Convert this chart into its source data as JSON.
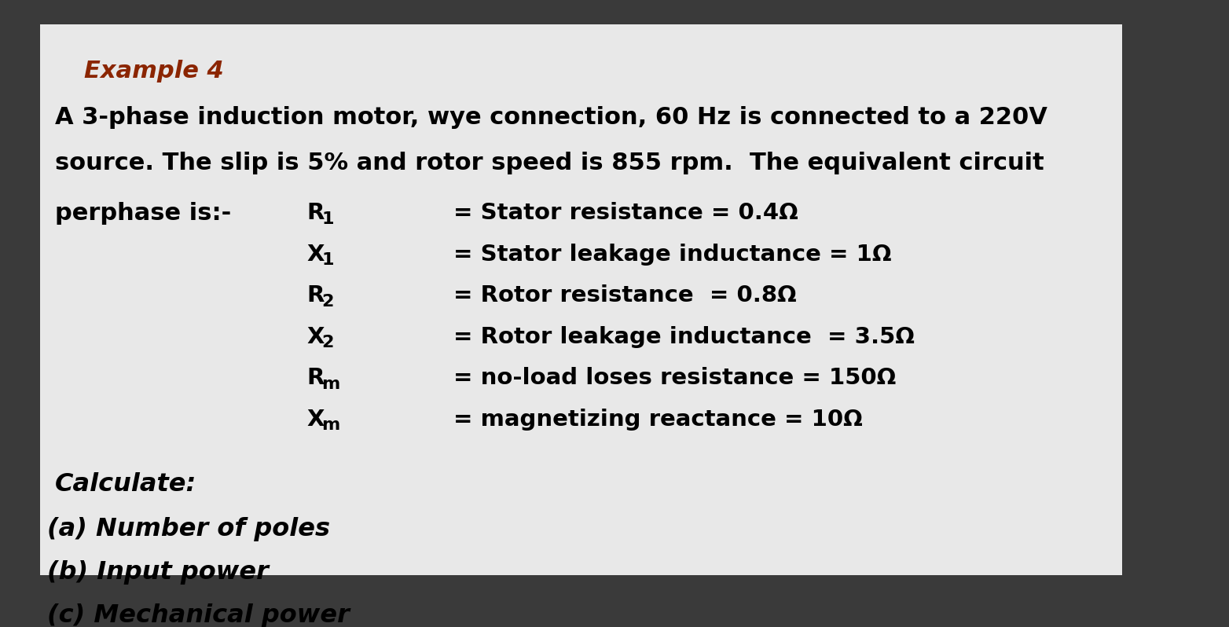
{
  "outer_bg": "#3a3a3a",
  "paper_color": "#e8e8e8",
  "title": "Example 4",
  "title_color": "#8B2500",
  "line1": "A 3-phase induction motor, wye connection, 60 Hz is connected to a 220V",
  "line2": "source. The slip is 5% and rotor speed is 855 rpm.  The equivalent circuit",
  "line3": "perphase is:-",
  "params": [
    [
      "R",
      "1",
      "= Stator resistance = 0.4Ω"
    ],
    [
      "X",
      "1",
      "= Stator leakage inductance = 1Ω"
    ],
    [
      "R",
      "2",
      "= Rotor resistance  = 0.8Ω"
    ],
    [
      "X",
      "2",
      "= Rotor leakage inductance  = 3.5Ω"
    ],
    [
      "R",
      "m",
      "= no-load loses resistance = 150Ω"
    ],
    [
      "X",
      "m",
      "= magnetizing reactance = 10Ω"
    ]
  ],
  "calculate_label": "Calculate:",
  "questions": [
    "(a) Number of poles",
    "(b) Input power",
    "(c) Mechanical power"
  ],
  "fs_title": 22,
  "fs_body": 22,
  "fs_params": 21,
  "fs_sub": 16,
  "fs_calc": 23,
  "fs_quest": 23
}
